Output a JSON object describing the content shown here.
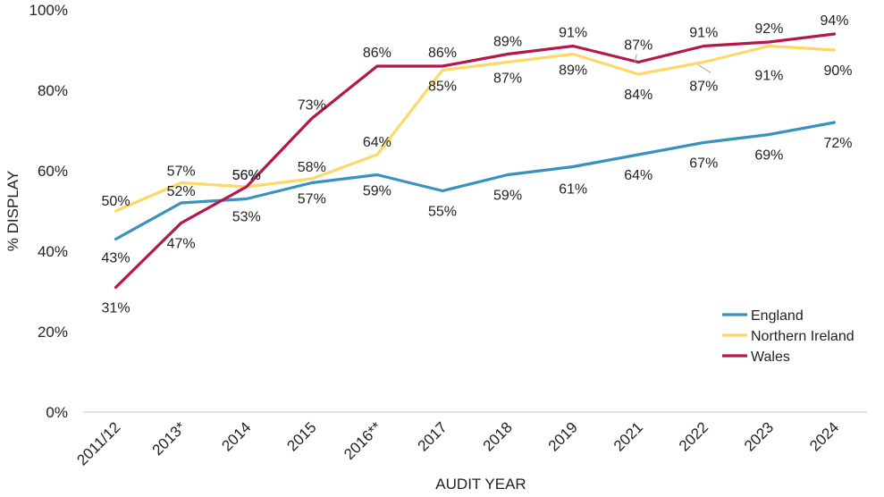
{
  "chart_data": {
    "type": "line",
    "title": "",
    "xlabel": "AUDIT YEAR",
    "ylabel": "% DISPLAY",
    "ylim": [
      0,
      100
    ],
    "yticks": [
      "0%",
      "20%",
      "40%",
      "60%",
      "80%",
      "100%"
    ],
    "ytick_values": [
      0,
      20,
      40,
      60,
      80,
      100
    ],
    "categories": [
      "2011/12",
      "2013*",
      "2014",
      "2015",
      "2016**",
      "2017",
      "2018",
      "2019",
      "2021",
      "2022",
      "2023",
      "2024"
    ],
    "legend_position": "right",
    "series": [
      {
        "name": "England",
        "color": "#3a91bd",
        "values": [
          43,
          52,
          53,
          57,
          59,
          55,
          59,
          61,
          64,
          67,
          69,
          72
        ],
        "labels": [
          "43%",
          "52%",
          "53%",
          "57%",
          "59%",
          "55%",
          "59%",
          "61%",
          "64%",
          "67%",
          "69%",
          "72%"
        ]
      },
      {
        "name": "Northern Ireland",
        "color": "#fcd868",
        "values": [
          50,
          57,
          56,
          58,
          64,
          85,
          87,
          89,
          84,
          87,
          91,
          90
        ],
        "labels": [
          "50%",
          "57%",
          "56%",
          "58%",
          "64%",
          "85%",
          "87%",
          "89%",
          "84%",
          "87%",
          "91%",
          "90%"
        ]
      },
      {
        "name": "Wales",
        "color": "#b5164d",
        "values": [
          31,
          47,
          56,
          73,
          86,
          86,
          89,
          91,
          87,
          91,
          92,
          94
        ],
        "labels": [
          "31%",
          "47%",
          "56%",
          "73%",
          "86%",
          "86%",
          "89%",
          "91%",
          "87%",
          "91%",
          "92%",
          "94%"
        ]
      }
    ]
  }
}
